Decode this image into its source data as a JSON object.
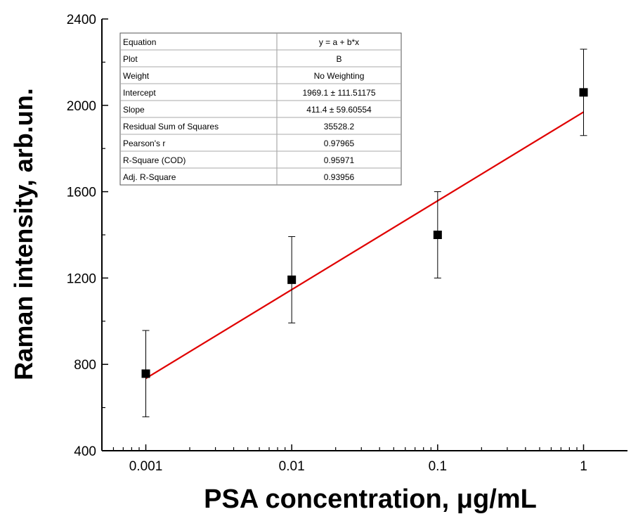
{
  "chart_data": {
    "type": "scatter",
    "title": "",
    "xlabel": "PSA concentration, μg/mL",
    "ylabel": "Raman intensity, arb.un.",
    "x_scale": "log",
    "xlim": [
      0.0005,
      2
    ],
    "ylim": [
      400,
      2400
    ],
    "x_ticks": [
      0.001,
      0.01,
      0.1,
      1
    ],
    "x_tick_labels": [
      "0.001",
      "0.01",
      "0.1",
      "1"
    ],
    "y_ticks": [
      400,
      800,
      1200,
      1600,
      2000,
      2400
    ],
    "y_tick_labels": [
      "400",
      "800",
      "1200",
      "1600",
      "2000",
      "2400"
    ],
    "grid": false,
    "series": [
      {
        "points": [
          {
            "x": 0.001,
            "y": 757,
            "err": 200
          },
          {
            "x": 0.01,
            "y": 1192,
            "err": 200
          },
          {
            "x": 0.1,
            "y": 1400,
            "err": 200
          },
          {
            "x": 1,
            "y": 2060,
            "err": 200
          }
        ],
        "marker": "square",
        "color": "#000000"
      }
    ],
    "fit": {
      "x_range": [
        0.001,
        1
      ],
      "intercept": 1969.1,
      "slope": 411.4,
      "color": "#e00000"
    },
    "fit_table": {
      "rows": [
        {
          "label": "Equation",
          "value": "y = a + b*x"
        },
        {
          "label": "Plot",
          "value": "B"
        },
        {
          "label": "Weight",
          "value": "No Weighting"
        },
        {
          "label": "Intercept",
          "value": "1969.1 ± 111.51175"
        },
        {
          "label": "Slope",
          "value": "411.4 ± 59.60554"
        },
        {
          "label": "Residual Sum of Squares",
          "value": "35528.2"
        },
        {
          "label": "Pearson's r",
          "value": "0.97965"
        },
        {
          "label": "R-Square (COD)",
          "value": "0.95971"
        },
        {
          "label": "Adj. R-Square",
          "value": "0.93956"
        }
      ]
    }
  }
}
